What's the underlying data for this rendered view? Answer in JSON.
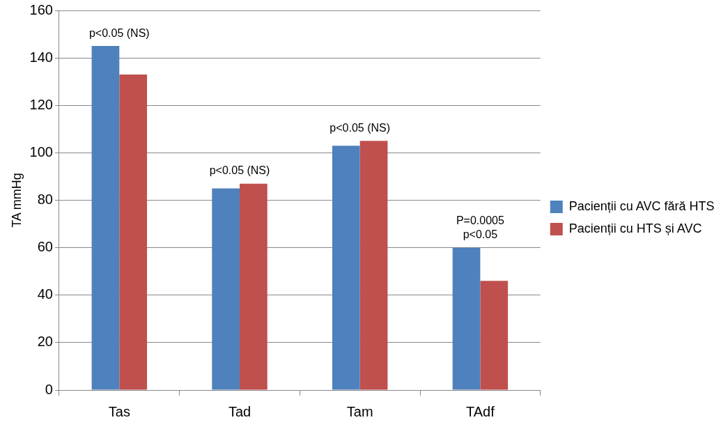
{
  "chart_data": {
    "type": "bar",
    "ylabel": "TA mmHg",
    "categories": [
      "Tas",
      "Tad",
      "Tam",
      "TAdf"
    ],
    "series": [
      {
        "name": "Pacienții cu AVC fără HTS",
        "color": "#4f81bd",
        "values": [
          145,
          85,
          103,
          60
        ]
      },
      {
        "name": "Pacienții cu HTS și AVC",
        "color": "#c0504d",
        "values": [
          133,
          87,
          105,
          46
        ]
      }
    ],
    "ylim": [
      0,
      160
    ],
    "yticks": [
      0,
      20,
      40,
      60,
      80,
      100,
      120,
      140,
      160
    ],
    "grid": "y",
    "legend": "right",
    "annotations": [
      {
        "text": "p<0.05 (NS)",
        "x": "Tas",
        "y": 145
      },
      {
        "text": "p<0.05 (NS)",
        "x": "Tad",
        "y": 87
      },
      {
        "text": "p<0.05 (NS)",
        "x": "Tam",
        "y": 105
      },
      {
        "text": "P=0.0005",
        "x": "TAdf",
        "y": 60
      },
      {
        "text": "p<0.05",
        "x": "TAdf",
        "y": 60
      }
    ]
  }
}
